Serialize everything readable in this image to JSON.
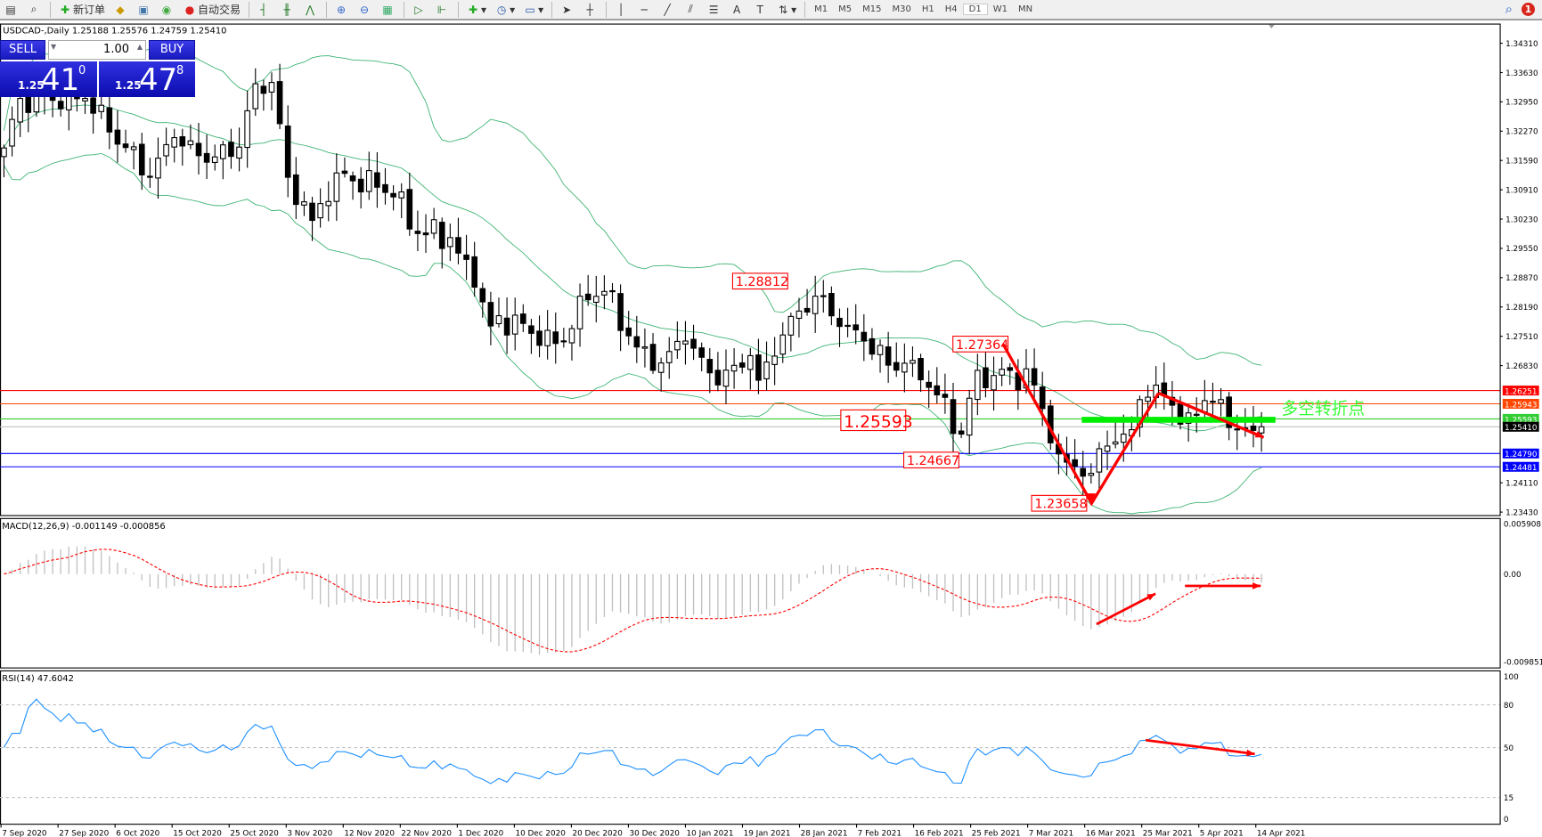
{
  "toolbar": {
    "new_order": "新订单",
    "auto_trading": "自动交易",
    "timeframes": [
      "M1",
      "M5",
      "M15",
      "M30",
      "H1",
      "H4",
      "D1",
      "W1",
      "MN"
    ],
    "active_timeframe": "D1",
    "notification_count": "1"
  },
  "chart": {
    "title": "USDCAD-,Daily  1.25188 1.25576 1.24759 1.25410",
    "symbol": "USDCAD-",
    "period": "Daily",
    "ohlc": [
      "1.25188",
      "1.25576",
      "1.24759",
      "1.25410"
    ],
    "price_axis": [
      "1.34310",
      "1.33630",
      "1.32950",
      "1.32270",
      "1.31590",
      "1.30910",
      "1.30230",
      "1.29550",
      "1.28870",
      "1.28190",
      "1.27510",
      "1.26830",
      "1.24110",
      "1.23430"
    ],
    "price_range": [
      1.2343,
      1.3431
    ],
    "levels": [
      {
        "price": "1.26251",
        "color": "#ff0000",
        "text_color": "#ffffff"
      },
      {
        "price": "1.25943",
        "color": "#ff4500",
        "text_color": "#ffffff"
      },
      {
        "price": "1.25593",
        "color": "#32cd32",
        "text_color": "#ffffff"
      },
      {
        "price": "1.25410",
        "color": "#000000",
        "text_color": "#ffffff",
        "line": "#c0c0c0"
      },
      {
        "price": "1.24790",
        "color": "#0000ff",
        "text_color": "#ffffff"
      },
      {
        "price": "1.24481",
        "color": "#0000ff",
        "text_color": "#ffffff"
      }
    ],
    "annotations": [
      "1.28812",
      "1.27364",
      "1.25593",
      "1.24667",
      "1.23658"
    ],
    "pivot_text": "多空转折点",
    "pivot_color": "#33ff33",
    "arrow_color": "#ff0000",
    "band_color": "#3cb371",
    "close_keypoints": [
      [
        0,
        1.3188
      ],
      [
        2,
        1.3303
      ],
      [
        10,
        1.3303
      ],
      [
        15,
        1.3189
      ],
      [
        18,
        1.312
      ],
      [
        21,
        1.3212
      ],
      [
        25,
        1.3155
      ],
      [
        29,
        1.319
      ],
      [
        31,
        1.3337
      ],
      [
        33,
        1.334
      ],
      [
        35,
        1.312
      ],
      [
        38,
        1.302
      ],
      [
        41,
        1.313
      ],
      [
        46,
        1.3097
      ],
      [
        49,
        1.3086
      ],
      [
        50,
        1.3
      ],
      [
        55,
        1.298
      ],
      [
        58,
        1.2865
      ],
      [
        60,
        1.2775
      ],
      [
        63,
        1.28
      ],
      [
        66,
        1.273
      ],
      [
        69,
        1.274
      ],
      [
        71,
        1.2844
      ],
      [
        74,
        1.2855
      ],
      [
        77,
        1.2752
      ],
      [
        80,
        1.2672
      ],
      [
        84,
        1.274
      ],
      [
        88,
        1.2638
      ],
      [
        92,
        1.2706
      ],
      [
        93,
        1.2649
      ],
      [
        97,
        1.2797
      ],
      [
        100,
        1.2844
      ],
      [
        104,
        1.2775
      ],
      [
        106,
        1.274
      ],
      [
        109,
        1.2684
      ],
      [
        112,
        1.2695
      ],
      [
        115,
        1.2615
      ],
      [
        118,
        1.2524
      ],
      [
        120,
        1.2672
      ],
      [
        122,
        1.266
      ],
      [
        124,
        1.2672
      ],
      [
        127,
        1.2638
      ],
      [
        130,
        1.2478
      ],
      [
        134,
        1.2433
      ],
      [
        135,
        1.249
      ],
      [
        138,
        1.2524
      ],
      [
        140,
        1.2604
      ],
      [
        143,
        1.2615
      ],
      [
        145,
        1.2547
      ],
      [
        147,
        1.257
      ],
      [
        150,
        1.2604
      ],
      [
        152,
        1.2536
      ],
      [
        155,
        1.2541
      ]
    ]
  },
  "trade_panel": {
    "sell_label": "SELL",
    "buy_label": "BUY",
    "lot": "1.00",
    "sell_price": {
      "small": "1.25",
      "big": "41",
      "sup": "0"
    },
    "buy_price": {
      "small": "1.25",
      "big": "47",
      "sup": "8"
    }
  },
  "macd": {
    "label": "MACD(12,26,9) -0.001149 -0.000856",
    "axis": [
      "0.005908",
      "0.00",
      "-0.009851"
    ]
  },
  "rsi": {
    "label": "RSI(14) 47.6042",
    "axis": [
      "100",
      "80",
      "50",
      "15",
      "0"
    ]
  },
  "dates": [
    "7 Sep 2020",
    "27 Sep 2020",
    "6 Oct 2020",
    "15 Oct 2020",
    "25 Oct 2020",
    "3 Nov 2020",
    "12 Nov 2020",
    "22 Nov 2020",
    "1 Dec 2020",
    "10 Dec 2020",
    "20 Dec 2020",
    "30 Dec 2020",
    "10 Jan 2021",
    "19 Jan 2021",
    "28 Jan 2021",
    "7 Feb 2021",
    "16 Feb 2021",
    "25 Feb 2021",
    "7 Mar 2021",
    "16 Mar 2021",
    "25 Mar 2021",
    "5 Apr 2021",
    "14 Apr 2021"
  ]
}
